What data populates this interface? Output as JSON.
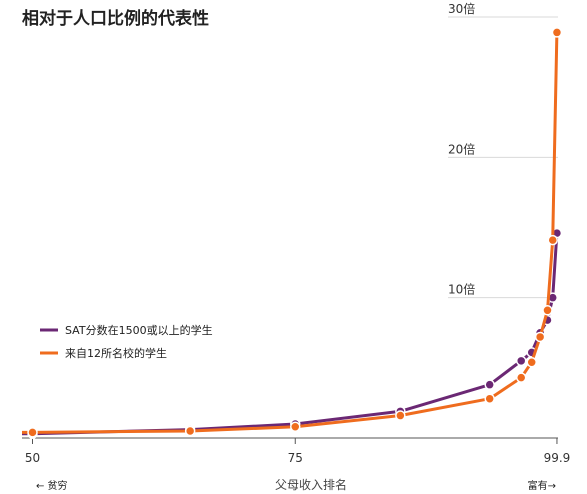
{
  "chart_data": {
    "type": "line",
    "title": "相对于人口比例的代表性",
    "xlabel": "父母收入排名",
    "ylabel": "",
    "x_ticks": [
      50,
      75,
      99.9
    ],
    "y_ticks": [
      10,
      20,
      30
    ],
    "y_tick_suffix": "倍",
    "xlim": [
      49,
      100
    ],
    "ylim": [
      0,
      30
    ],
    "grid": true,
    "legend_position": "left-middle",
    "arrow_left": "← 贫穷",
    "arrow_right": "富有→",
    "series": [
      {
        "name": "SAT分数在1500或以上的学生",
        "color": "#6b2874",
        "x": [
          49,
          50,
          65,
          75,
          85,
          93.5,
          96.5,
          97.5,
          98.3,
          99,
          99.5,
          99.9
        ],
        "y": [
          0.3,
          0.3,
          0.6,
          1.0,
          1.9,
          3.8,
          5.5,
          6.1,
          7.5,
          8.4,
          10.0,
          14.6
        ]
      },
      {
        "name": "来自12所名校的学生",
        "color": "#ef6c1e",
        "x": [
          49,
          50,
          65,
          75,
          85,
          93.5,
          96.5,
          97.5,
          98.3,
          99,
          99.5,
          99.9
        ],
        "y": [
          0.4,
          0.4,
          0.5,
          0.8,
          1.6,
          2.8,
          4.3,
          5.4,
          7.2,
          9.1,
          14.1,
          28.9
        ]
      }
    ]
  }
}
